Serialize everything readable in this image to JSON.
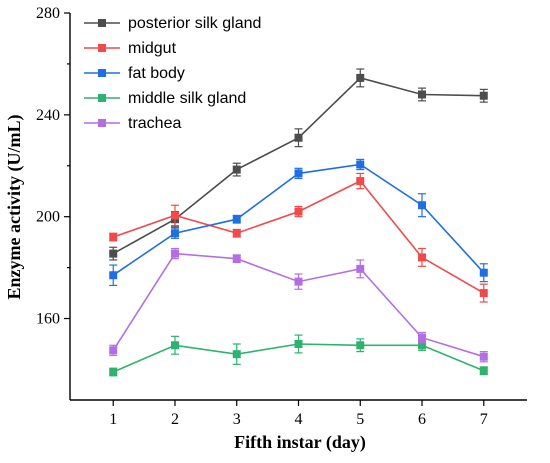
{
  "chart_data": {
    "type": "line",
    "title": "",
    "xlabel": "Fifth instar (day)",
    "ylabel": "Enzyme activity (U/mL)",
    "x": [
      1,
      2,
      3,
      4,
      5,
      6,
      7
    ],
    "xlim": [
      0.3,
      7.7
    ],
    "ylim": [
      128,
      280
    ],
    "yticks": [
      160,
      200,
      240,
      280
    ],
    "grid": false,
    "legend_position": "top-left",
    "series": [
      {
        "name": "posterior silk gland",
        "color": "#4d4d4d",
        "values": [
          185.5,
          199,
          218.5,
          231,
          254.5,
          248,
          247.5
        ],
        "errors": [
          2.5,
          3,
          2.5,
          3.5,
          3.5,
          2.5,
          2.5
        ]
      },
      {
        "name": "midgut",
        "color": "#f04a4a",
        "values": [
          192,
          200.5,
          193.5,
          202,
          214,
          184,
          170
        ],
        "errors": [
          1.5,
          4,
          1.5,
          2,
          3,
          3.5,
          3.5
        ]
      },
      {
        "name": "fat body",
        "color": "#1f6fe0",
        "values": [
          177,
          193.5,
          199,
          217,
          220.5,
          204.5,
          178
        ],
        "errors": [
          4,
          2,
          1.5,
          2,
          2,
          4.5,
          3.5
        ]
      },
      {
        "name": "middle silk gland",
        "color": "#2db36e",
        "values": [
          139,
          149.5,
          146,
          150,
          149.5,
          149.5,
          139.5
        ],
        "errors": [
          1.5,
          3.5,
          4,
          3.5,
          2.5,
          2,
          1.5
        ]
      },
      {
        "name": "trachea",
        "color": "#b36ee6",
        "values": [
          147.5,
          185.5,
          183.5,
          174.5,
          179.5,
          152.5,
          145
        ],
        "errors": [
          2,
          2,
          1.5,
          3,
          3.5,
          2,
          2
        ]
      }
    ]
  }
}
